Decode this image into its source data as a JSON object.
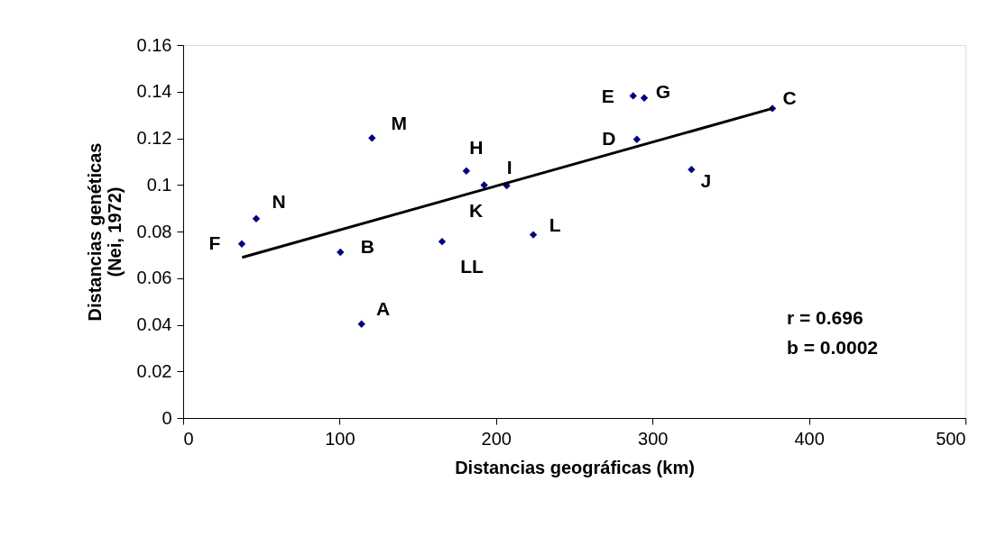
{
  "chart_data": {
    "type": "scatter",
    "xlabel": "Distancias geográficas (km)",
    "ylabel": "Distancias genéticas\n(Nei, 1972)",
    "xlim": [
      0,
      500
    ],
    "xticks": [
      0,
      100,
      200,
      300,
      400,
      500
    ],
    "ylim": [
      0,
      0.16
    ],
    "yticks": [
      0,
      0.02,
      0.04,
      0.06,
      0.08,
      0.1,
      0.12,
      0.14,
      0.16
    ],
    "grid": false,
    "series": [
      {
        "type": "scatter",
        "marker": "diamond",
        "color": "#000080",
        "x": [
          37.5,
          46.7,
          100.5,
          114,
          120.7,
          181,
          192.4,
          206.8,
          165.5,
          223.8,
          287.6,
          294.7,
          290,
          324.9,
          376.6
        ],
        "values": [
          0.0747,
          0.0855,
          0.0711,
          0.0403,
          0.1201,
          0.106,
          0.0999,
          0.0997,
          0.0757,
          0.0786,
          0.1382,
          0.1373,
          0.1195,
          0.1066,
          0.1328
        ]
      },
      {
        "type": "line",
        "line_style": "solid",
        "marker": "none",
        "color": "#000000",
        "x": [
          37.7,
          376.6
        ],
        "values": [
          0.0689,
          0.1328
        ]
      }
    ],
    "annotations": [
      {
        "text": "F",
        "x": 37.5,
        "y": 0.0747
      },
      {
        "text": "N",
        "x": 46.7,
        "y": 0.0855
      },
      {
        "text": "B",
        "x": 100.5,
        "y": 0.0711
      },
      {
        "text": "A",
        "x": 114,
        "y": 0.0403
      },
      {
        "text": "M",
        "x": 120.7,
        "y": 0.1201
      },
      {
        "text": "H",
        "x": 181,
        "y": 0.106
      },
      {
        "text": "K",
        "x": 192.4,
        "y": 0.0999
      },
      {
        "text": "I",
        "x": 206.8,
        "y": 0.0997
      },
      {
        "text": "LL",
        "x": 165.5,
        "y": 0.0757
      },
      {
        "text": "L",
        "x": 223.8,
        "y": 0.0786
      },
      {
        "text": "E",
        "x": 287.6,
        "y": 0.1382
      },
      {
        "text": "G",
        "x": 294.7,
        "y": 0.1373
      },
      {
        "text": "D",
        "x": 290,
        "y": 0.1195
      },
      {
        "text": "J",
        "x": 324.9,
        "y": 0.1066
      },
      {
        "text": "C",
        "x": 376.6,
        "y": 0.1328
      },
      "r = 0.696",
      "b = 0.0002"
    ]
  }
}
